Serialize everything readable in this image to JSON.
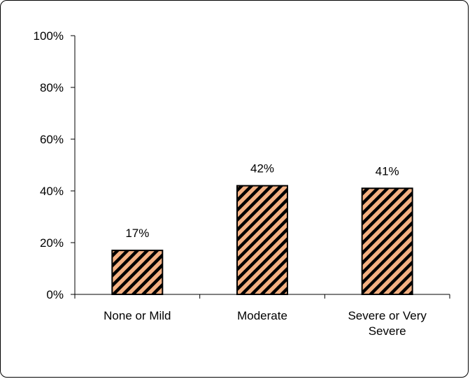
{
  "chart_data": {
    "type": "bar",
    "categories": [
      [
        "None or Mild"
      ],
      [
        "Moderate"
      ],
      [
        "Severe or Very",
        "Severe"
      ]
    ],
    "values": [
      17,
      42,
      41
    ],
    "data_labels": [
      "17%",
      "42%",
      "41%"
    ],
    "yticks": [
      "0%",
      "20%",
      "40%",
      "60%",
      "80%",
      "100%"
    ],
    "ylim": [
      0,
      100
    ],
    "grid": false,
    "bar_fill": "#f4b183",
    "bar_hatch": "#000000",
    "title": "",
    "xlabel": "",
    "ylabel": ""
  }
}
